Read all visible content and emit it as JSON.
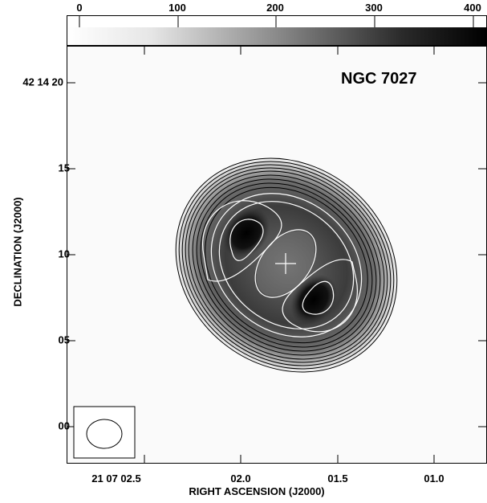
{
  "title": "NGC 7027",
  "colorbar": {
    "ticks": [
      "0",
      "100",
      "200",
      "300",
      "400"
    ],
    "range": [
      0,
      420
    ],
    "colormap": "grayscale white-to-black"
  },
  "axes": {
    "xlabel": "RIGHT ASCENSION (J2000)",
    "ylabel": "DECLINATION (J2000)",
    "xticks": [
      "21 07 02.5",
      "02.0",
      "01.5",
      "01.0"
    ],
    "yticks": [
      "42 14 20",
      "15",
      "10",
      "05",
      "00"
    ]
  },
  "beam": {
    "shape": "ellipse",
    "location": "bottom-left"
  },
  "markers": {
    "center": "cross"
  },
  "colors": {
    "background": "#ffffff",
    "contour_dark": "#000000",
    "contour_light": "#ffffff"
  }
}
